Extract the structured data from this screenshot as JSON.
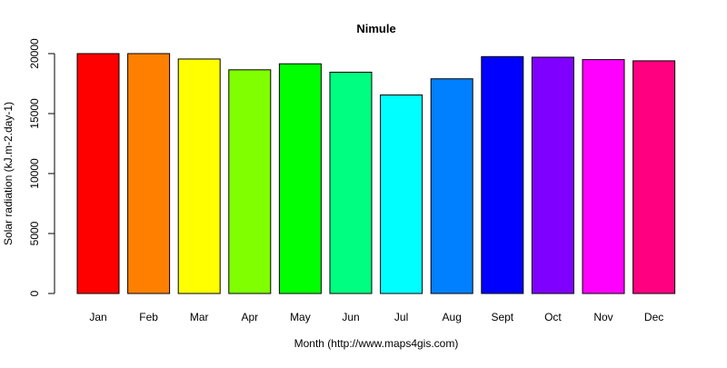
{
  "chart_data": {
    "type": "bar",
    "title": "Nimule",
    "xlabel": "Month (http://www.maps4gis.com)",
    "ylabel": "Solar radiation (kJ.m-2.day-1)",
    "categories": [
      "Jan",
      "Feb",
      "Mar",
      "Apr",
      "May",
      "Jun",
      "Jul",
      "Aug",
      "Sept",
      "Oct",
      "Nov",
      "Dec"
    ],
    "values": [
      20000,
      20000,
      19550,
      18650,
      19150,
      18450,
      16550,
      17900,
      19750,
      19700,
      19500,
      19400
    ],
    "colors": [
      "#FF0000",
      "#FF8000",
      "#FFFF00",
      "#80FF00",
      "#00FF00",
      "#00FF80",
      "#00FFFF",
      "#0080FF",
      "#0000FF",
      "#8000FF",
      "#FF00FF",
      "#FF0080"
    ],
    "ylim": [
      0,
      20000
    ],
    "yticks": [
      0,
      5000,
      10000,
      15000,
      20000
    ],
    "ytick_labels": [
      "0",
      "5000",
      "10000",
      "15000",
      "20000"
    ],
    "grid": false,
    "legend": "none"
  }
}
